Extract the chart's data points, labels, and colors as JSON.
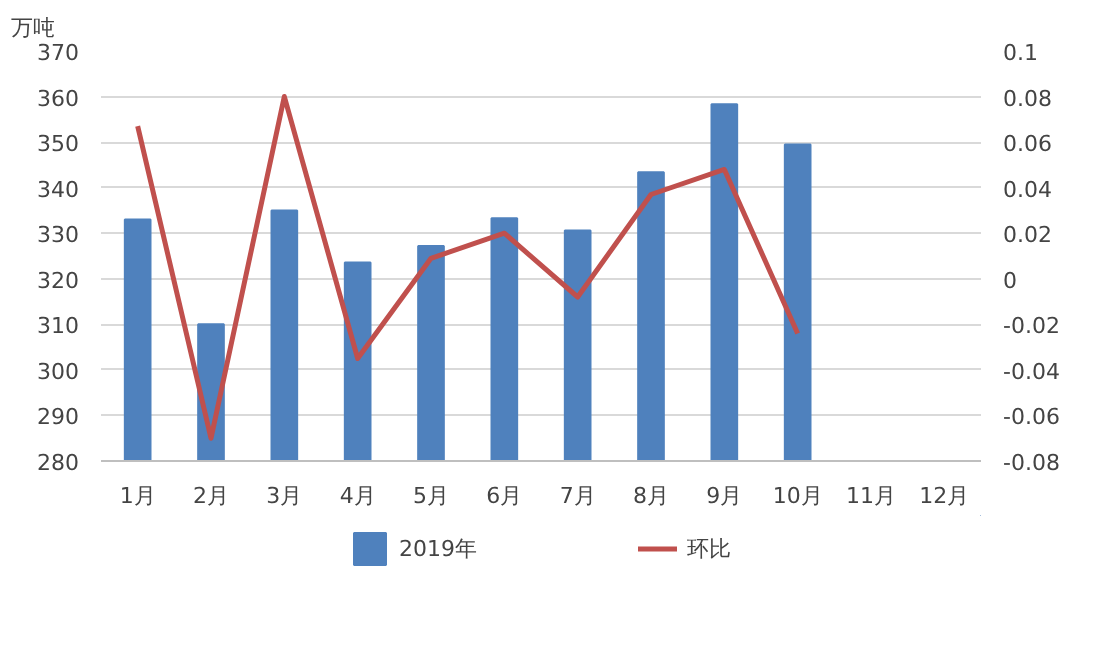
{
  "chart_data": {
    "type": "bar",
    "ylabel": "万吨",
    "categories": [
      "1月",
      "2月",
      "3月",
      "4月",
      "5月",
      "6月",
      "7月",
      "8月",
      "9月",
      "10月",
      "11月",
      "12月"
    ],
    "series": [
      {
        "name": "2019年",
        "color": "#4f81bd",
        "values": [
          333,
          310,
          335,
          323.6,
          327.2,
          333.3,
          330.6,
          343.4,
          358.3,
          349.5,
          null,
          null
        ]
      },
      {
        "name": "环比",
        "type": "line",
        "axis": "y2",
        "color": "#c0504d",
        "values": [
          0.067,
          -0.07,
          0.08,
          -0.035,
          0.009,
          0.02,
          -0.008,
          0.037,
          0.048,
          -0.024,
          null,
          null
        ]
      }
    ],
    "ylim": [
      280,
      370
    ],
    "yticks": [
      280,
      290,
      300,
      310,
      320,
      330,
      340,
      350,
      360,
      370
    ],
    "y2lim": [
      -0.08,
      0.1
    ],
    "y2ticks": [
      -0.08,
      -0.06,
      -0.04,
      -0.02,
      0,
      0.02,
      0.04,
      0.06,
      0.08,
      0.1
    ],
    "grid": "y",
    "legend": "bottom"
  }
}
